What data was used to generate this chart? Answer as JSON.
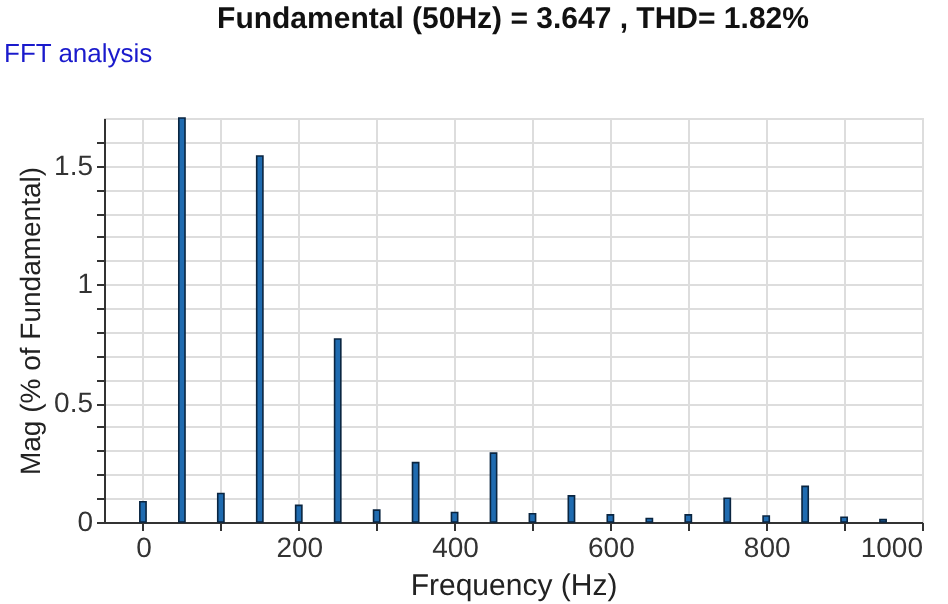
{
  "chart_data": {
    "type": "bar",
    "title": "Fundamental (50Hz) = 3.647 , THD= 1.82%",
    "annotations": [
      "FFT analysis"
    ],
    "xlabel": "Frequency (Hz)",
    "ylabel": "Mag (% of Fundamental)",
    "x": [
      0,
      50,
      100,
      150,
      200,
      250,
      300,
      350,
      400,
      450,
      500,
      550,
      600,
      650,
      700,
      750,
      800,
      850,
      900,
      950
    ],
    "values": [
      0.085,
      1.7,
      0.12,
      1.54,
      0.07,
      0.77,
      0.05,
      0.25,
      0.04,
      0.29,
      0.035,
      0.11,
      0.03,
      0.015,
      0.03,
      0.1,
      0.025,
      0.15,
      0.02,
      0.01
    ],
    "color": "#1f6bb0",
    "xlim": [
      -50,
      1000
    ],
    "ylim": [
      0,
      1.7
    ],
    "xticks": [
      0,
      {
        "value": 100,
        "label": null
      },
      200,
      {
        "value": 300,
        "label": null
      },
      400,
      {
        "value": 500,
        "label": null
      },
      600,
      {
        "value": 700,
        "label": null
      },
      800,
      {
        "value": 900,
        "label": null
      },
      1000
    ],
    "yticks": [
      0,
      {
        "value": 0.1,
        "label": null
      },
      {
        "value": 0.2,
        "label": null
      },
      {
        "value": 0.3,
        "label": null
      },
      {
        "value": 0.4,
        "label": null
      },
      0.5,
      {
        "value": 0.6,
        "label": null
      },
      {
        "value": 0.7,
        "label": null
      },
      {
        "value": 0.8,
        "label": null
      },
      {
        "value": 0.9,
        "label": null
      },
      1,
      {
        "value": 1.1,
        "label": null
      },
      {
        "value": 1.2,
        "label": null
      },
      {
        "value": 1.3,
        "label": null
      },
      {
        "value": 1.4,
        "label": null
      },
      1.5,
      {
        "value": 1.6,
        "label": null
      }
    ],
    "grid": true
  }
}
